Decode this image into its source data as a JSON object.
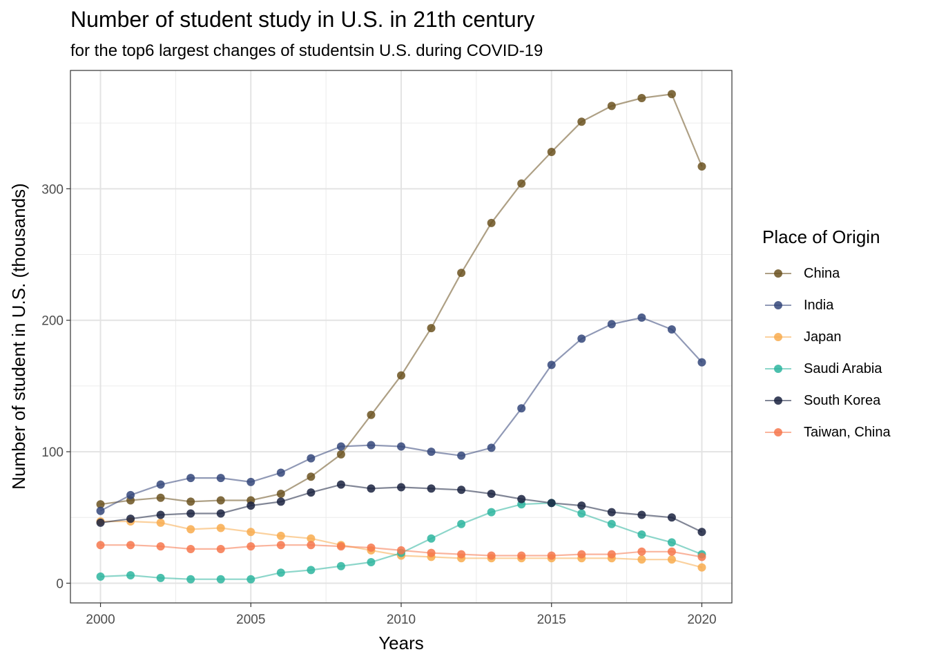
{
  "chart_data": {
    "type": "line",
    "title": "Number of student study in U.S. in 21th century",
    "subtitle": "for the top6 largest changes of studentsin U.S. during COVID-19",
    "xlabel": "Years",
    "ylabel": "Number of student in U.S. (thousands)",
    "xlim": [
      1999,
      2021
    ],
    "ylim": [
      -15,
      390
    ],
    "x_ticks": [
      2000,
      2005,
      2010,
      2015,
      2020
    ],
    "y_ticks": [
      0,
      100,
      200,
      300
    ],
    "grid": true,
    "legend_title": "Place of Origin",
    "legend_position": "right",
    "x": [
      2000,
      2001,
      2002,
      2003,
      2004,
      2005,
      2006,
      2007,
      2008,
      2009,
      2010,
      2011,
      2012,
      2013,
      2014,
      2015,
      2016,
      2017,
      2018,
      2019,
      2020
    ],
    "series": [
      {
        "name": "China",
        "color": "#6b5220",
        "values": [
          60,
          63,
          65,
          62,
          63,
          63,
          68,
          81,
          98,
          128,
          158,
          194,
          236,
          274,
          304,
          328,
          351,
          363,
          369,
          372,
          317
        ]
      },
      {
        "name": "India",
        "color": "#34467a",
        "values": [
          55,
          67,
          75,
          80,
          80,
          77,
          84,
          95,
          104,
          105,
          104,
          100,
          97,
          103,
          133,
          166,
          186,
          197,
          202,
          193,
          168
        ]
      },
      {
        "name": "Japan",
        "color": "#f8ab4e",
        "values": [
          47,
          47,
          46,
          41,
          42,
          39,
          36,
          34,
          29,
          25,
          21,
          20,
          19,
          19,
          19,
          19,
          19,
          19,
          18,
          18,
          12
        ]
      },
      {
        "name": "Saudi Arabia",
        "color": "#2db59f",
        "values": [
          5,
          6,
          4,
          3,
          3,
          3,
          8,
          10,
          13,
          16,
          23,
          34,
          45,
          54,
          60,
          61,
          53,
          45,
          37,
          31,
          22
        ]
      },
      {
        "name": "South Korea",
        "color": "#1a223f",
        "values": [
          46,
          49,
          52,
          53,
          53,
          59,
          62,
          69,
          75,
          72,
          73,
          72,
          71,
          68,
          64,
          61,
          59,
          54,
          52,
          50,
          39
        ]
      },
      {
        "name": "Taiwan, China",
        "color": "#f6774c",
        "values": [
          29,
          29,
          28,
          26,
          26,
          28,
          29,
          29,
          28,
          27,
          25,
          23,
          22,
          21,
          21,
          21,
          22,
          22,
          24,
          24,
          20
        ]
      }
    ]
  }
}
